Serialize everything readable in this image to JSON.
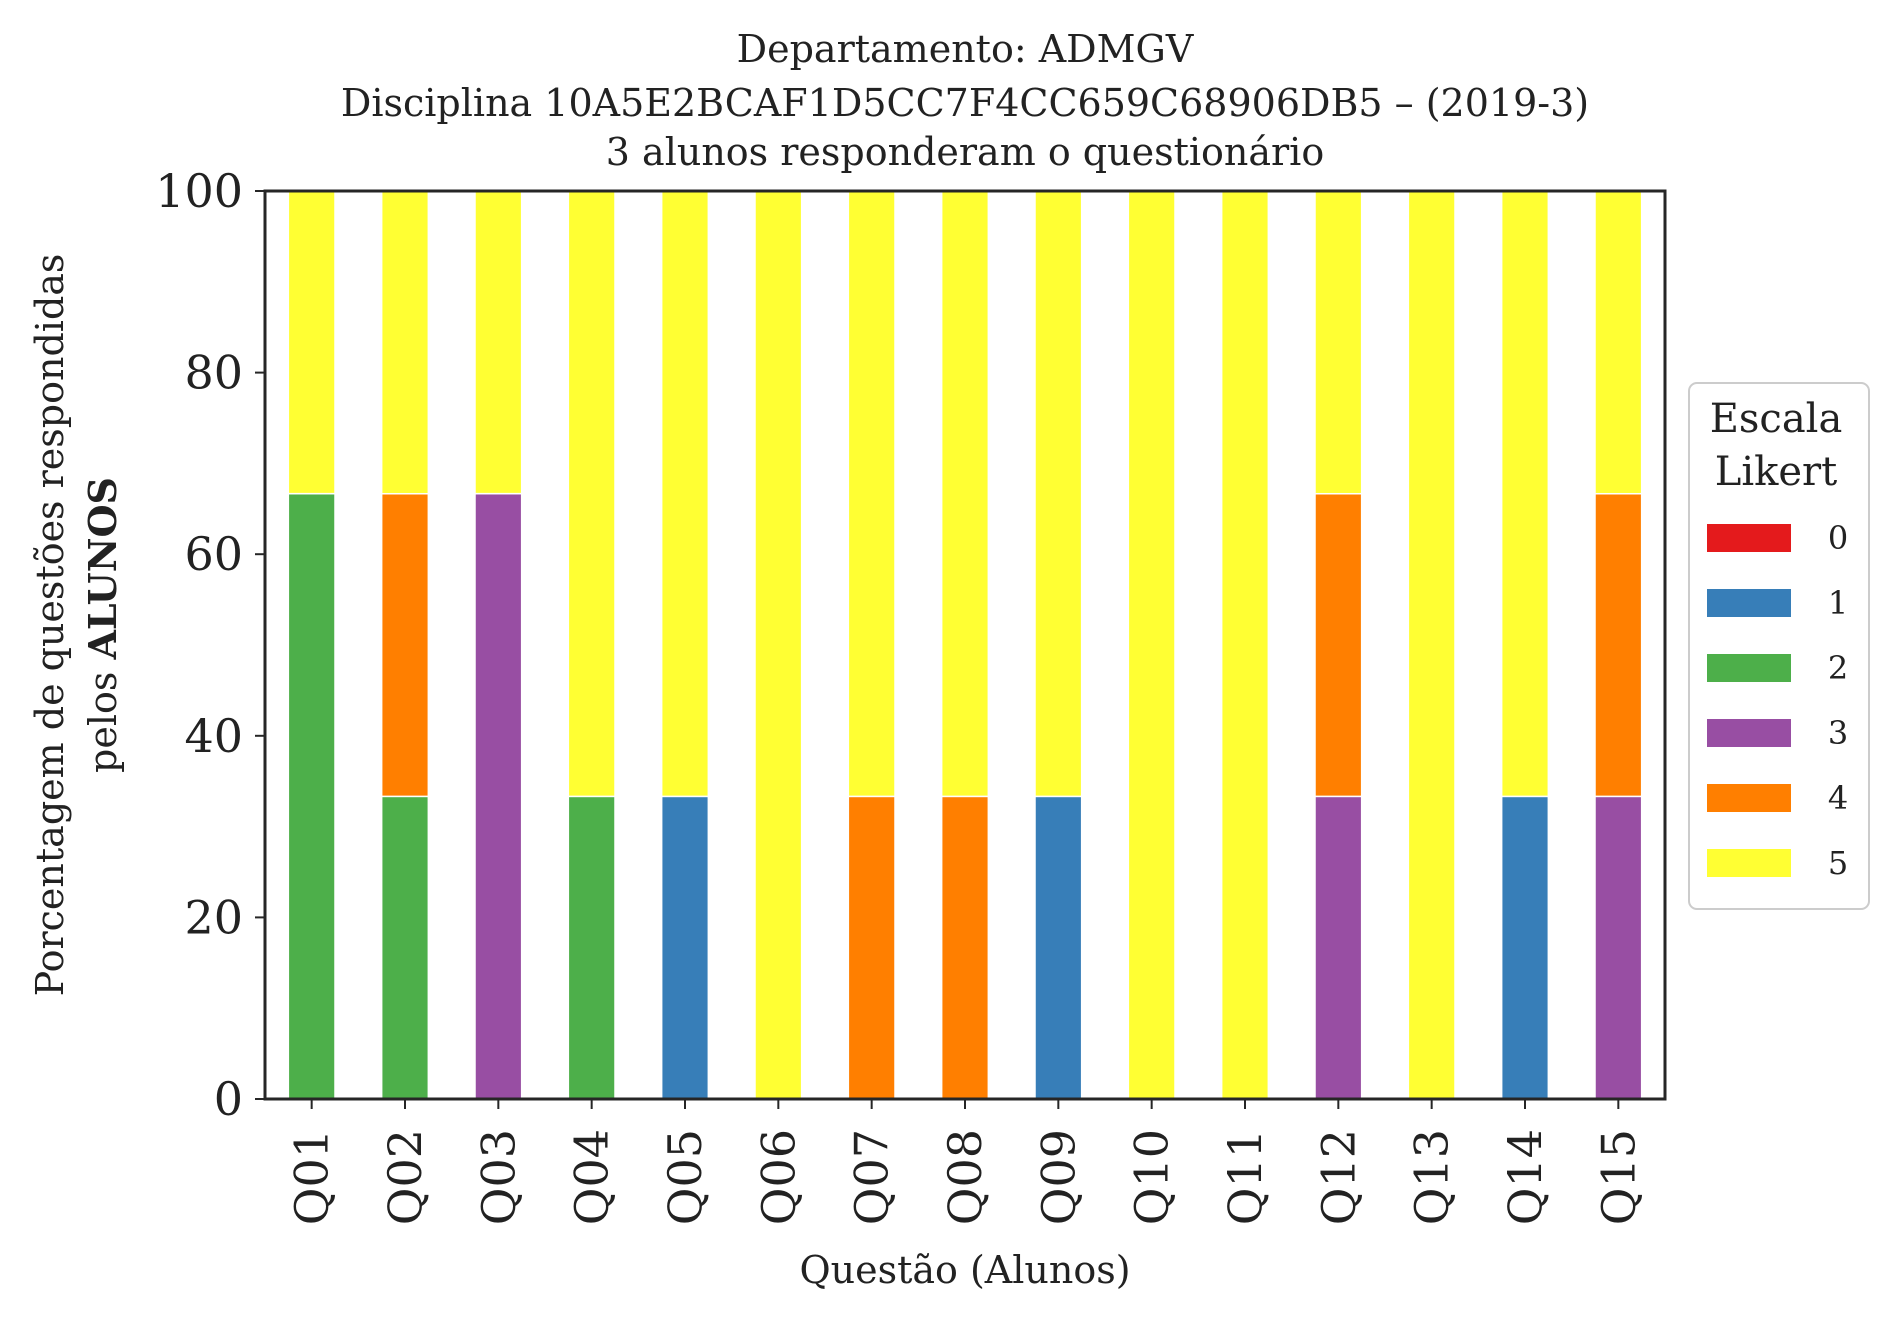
{
  "chart_data": {
    "type": "bar",
    "stacked": true,
    "title": {
      "line1": "Departamento: ADMGV",
      "line2": "Disciplina 10A5E2BCAF1D5CC7F4CC659C68906DB5 – (2019-3)",
      "line3": "3 alunos responderam o questionário"
    },
    "xlabel": "Questão (Alunos)",
    "ylabel": {
      "line1": "Porcentagem de questões respondidas",
      "line2_prefix": "pelos ",
      "line2_bold": "ALUNOS"
    },
    "ylim": [
      0,
      100
    ],
    "yticks": [
      "0",
      "20",
      "40",
      "60",
      "80",
      "100"
    ],
    "categories": [
      "Q01",
      "Q02",
      "Q03",
      "Q04",
      "Q05",
      "Q06",
      "Q07",
      "Q08",
      "Q09",
      "Q10",
      "Q11",
      "Q12",
      "Q13",
      "Q14",
      "Q15"
    ],
    "series": [
      {
        "name": "0",
        "color": "#e41a1c",
        "values": [
          0,
          0,
          0,
          0,
          0,
          0,
          0,
          0,
          0,
          0,
          0,
          0,
          0,
          0,
          0
        ]
      },
      {
        "name": "1",
        "color": "#377eb8",
        "values": [
          0,
          0,
          0,
          0,
          33.33,
          0,
          0,
          0,
          33.33,
          0,
          0,
          0,
          0,
          33.33,
          0
        ]
      },
      {
        "name": "2",
        "color": "#4daf4a",
        "values": [
          66.67,
          33.33,
          0,
          33.33,
          0,
          0,
          0,
          0,
          0,
          0,
          0,
          0,
          0,
          0,
          0
        ]
      },
      {
        "name": "3",
        "color": "#984ea3",
        "values": [
          0,
          0,
          66.67,
          0,
          0,
          0,
          0,
          0,
          0,
          0,
          0,
          33.33,
          0,
          0,
          33.33
        ]
      },
      {
        "name": "4",
        "color": "#ff7f00",
        "values": [
          0,
          33.33,
          0,
          0,
          0,
          0,
          33.33,
          33.33,
          0,
          0,
          0,
          33.33,
          0,
          0,
          33.33
        ]
      },
      {
        "name": "5",
        "color": "#ffff33",
        "values": [
          33.33,
          33.33,
          33.33,
          66.67,
          66.67,
          100,
          66.67,
          66.67,
          66.67,
          100,
          100,
          33.33,
          100,
          66.67,
          33.33
        ]
      }
    ],
    "legend": {
      "title_line1": "Escala",
      "title_line2": "Likert",
      "placement": "center-right outside"
    },
    "grid": false
  }
}
